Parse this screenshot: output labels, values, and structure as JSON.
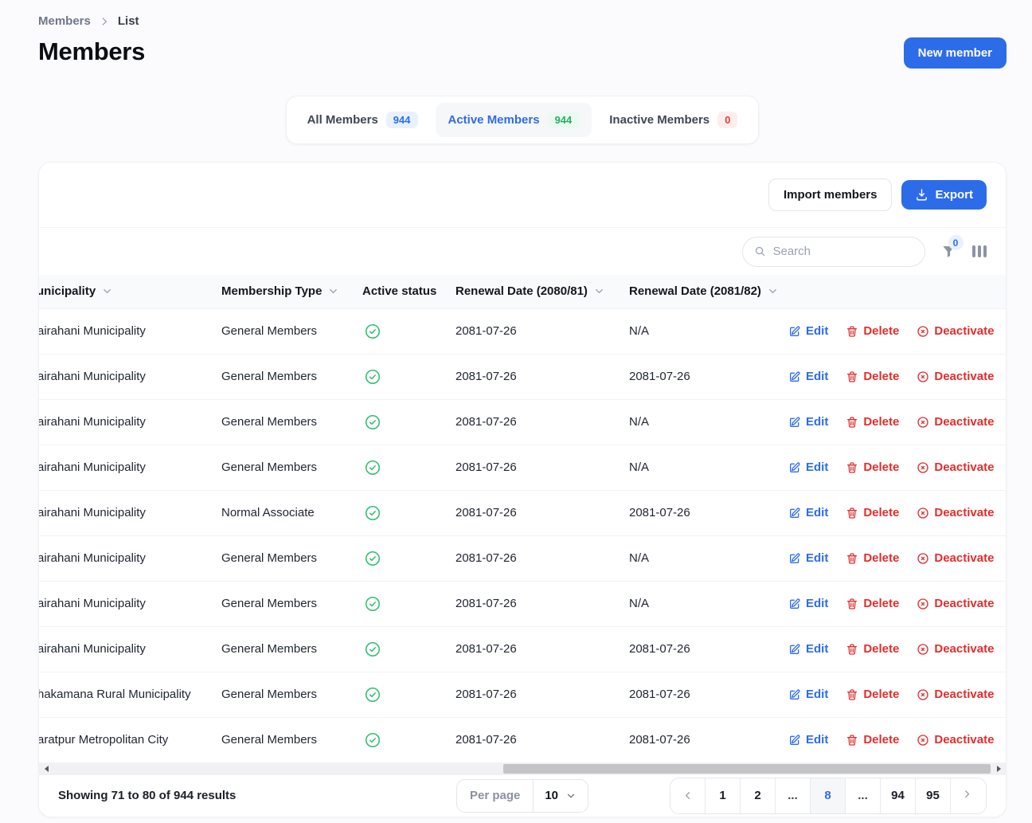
{
  "colors": {
    "primary": "#2d6ce9",
    "success": "#2fbe70",
    "danger": "#e22d2d"
  },
  "breadcrumb": {
    "root": "Members",
    "current": "List"
  },
  "page_title": "Members",
  "header_actions": {
    "new_member": "New member"
  },
  "tabs": [
    {
      "id": "all",
      "label": "All Members",
      "count": "944",
      "badge": "blue",
      "active": false
    },
    {
      "id": "active",
      "label": "Active Members",
      "count": "944",
      "badge": "green",
      "active": true
    },
    {
      "id": "inactive",
      "label": "Inactive Members",
      "count": "0",
      "badge": "red",
      "active": false
    }
  ],
  "toolbar": {
    "import_label": "Import members",
    "export_label": "Export",
    "search_placeholder": "Search",
    "filter_badge": "0"
  },
  "table": {
    "headers": [
      {
        "label": "unicipality",
        "sortable": true
      },
      {
        "label": "Membership Type",
        "sortable": true
      },
      {
        "label": "Active status",
        "sortable": false
      },
      {
        "label": "Renewal Date (2080/81)",
        "sortable": true
      },
      {
        "label": "Renewal Date (2081/82)",
        "sortable": true
      }
    ],
    "action_labels": {
      "edit": "Edit",
      "delete": "Delete",
      "deactivate": "Deactivate"
    },
    "rows": [
      {
        "municipality": "airahani Municipality",
        "membership_type": "General Members",
        "active": true,
        "renewal_2080": "2081-07-26",
        "renewal_2081": "N/A"
      },
      {
        "municipality": "airahani Municipality",
        "membership_type": "General Members",
        "active": true,
        "renewal_2080": "2081-07-26",
        "renewal_2081": "2081-07-26"
      },
      {
        "municipality": "airahani Municipality",
        "membership_type": "General Members",
        "active": true,
        "renewal_2080": "2081-07-26",
        "renewal_2081": "N/A"
      },
      {
        "municipality": "airahani Municipality",
        "membership_type": "General Members",
        "active": true,
        "renewal_2080": "2081-07-26",
        "renewal_2081": "N/A"
      },
      {
        "municipality": "airahani Municipality",
        "membership_type": "Normal Associate",
        "active": true,
        "renewal_2080": "2081-07-26",
        "renewal_2081": "2081-07-26"
      },
      {
        "municipality": "airahani Municipality",
        "membership_type": "General Members",
        "active": true,
        "renewal_2080": "2081-07-26",
        "renewal_2081": "N/A"
      },
      {
        "municipality": "airahani Municipality",
        "membership_type": "General Members",
        "active": true,
        "renewal_2080": "2081-07-26",
        "renewal_2081": "N/A"
      },
      {
        "municipality": "airahani Municipality",
        "membership_type": "General Members",
        "active": true,
        "renewal_2080": "2081-07-26",
        "renewal_2081": "2081-07-26"
      },
      {
        "municipality": "hakamana Rural Municipality",
        "membership_type": "General Members",
        "active": true,
        "renewal_2080": "2081-07-26",
        "renewal_2081": "2081-07-26"
      },
      {
        "municipality": "aratpur Metropolitan City",
        "membership_type": "General Members",
        "active": true,
        "renewal_2080": "2081-07-26",
        "renewal_2081": "2081-07-26"
      }
    ]
  },
  "footer": {
    "results_text": "Showing 71 to 80 of 944 results",
    "per_page_label": "Per page",
    "per_page_value": "10",
    "pagination": [
      {
        "kind": "prev"
      },
      {
        "kind": "page",
        "label": "1"
      },
      {
        "kind": "page",
        "label": "2"
      },
      {
        "kind": "ellipsis",
        "label": "..."
      },
      {
        "kind": "page",
        "label": "8",
        "active": true
      },
      {
        "kind": "ellipsis",
        "label": "..."
      },
      {
        "kind": "page",
        "label": "94"
      },
      {
        "kind": "page",
        "label": "95"
      },
      {
        "kind": "next"
      }
    ]
  }
}
